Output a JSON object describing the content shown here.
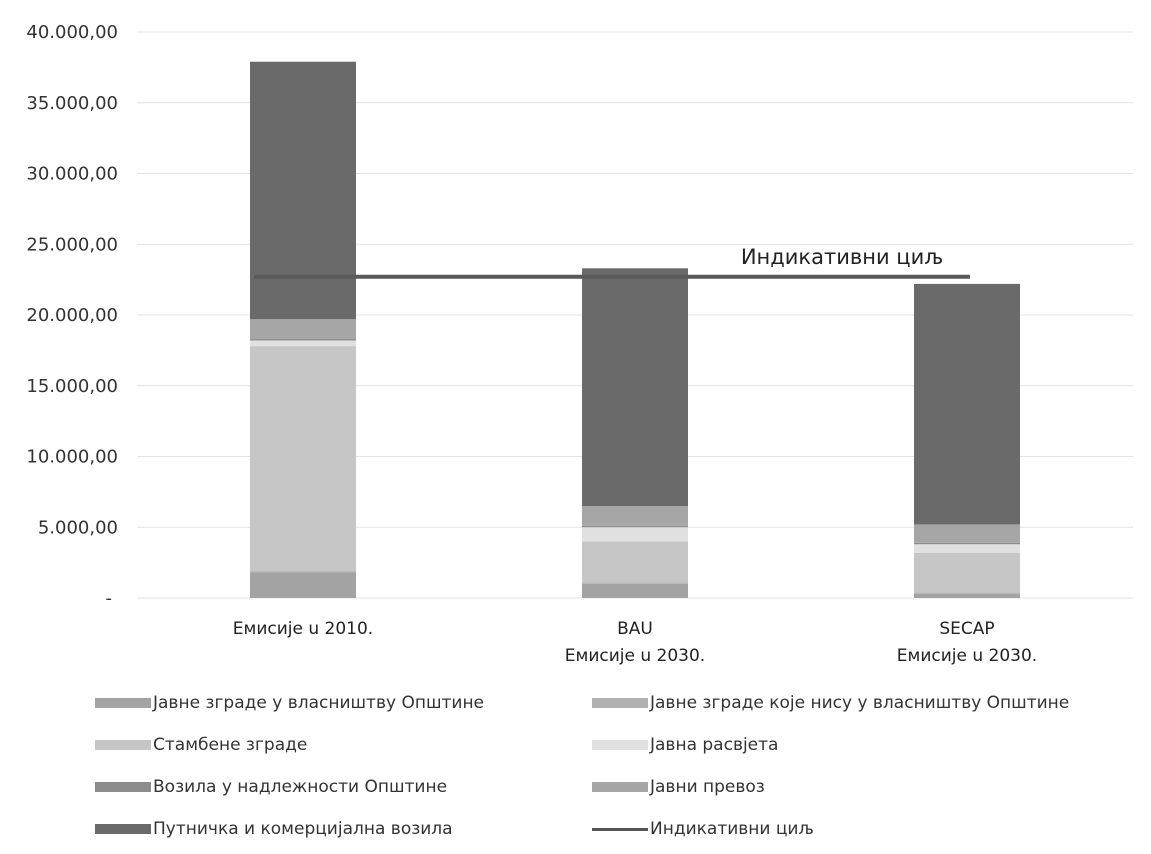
{
  "chart_data": {
    "type": "bar",
    "stacked": true,
    "categories": [
      [
        "Емисије u 2010."
      ],
      [
        "BAU",
        "Емисије u 2030."
      ],
      [
        "SECAP",
        "Емисије u 2030."
      ]
    ],
    "ylim": [
      0,
      40000
    ],
    "yticks": [
      {
        "value": 0,
        "label": "-"
      },
      {
        "value": 5000,
        "label": "5.000,00"
      },
      {
        "value": 10000,
        "label": "10.000,00"
      },
      {
        "value": 15000,
        "label": "15.000,00"
      },
      {
        "value": 20000,
        "label": "20.000,00"
      },
      {
        "value": 25000,
        "label": "25.000,00"
      },
      {
        "value": 30000,
        "label": "30.000,00"
      },
      {
        "value": 35000,
        "label": "35.000,00"
      },
      {
        "value": 40000,
        "label": "40.000,00"
      }
    ],
    "grid": true,
    "legend_position": "bottom",
    "series": [
      {
        "name": "Јавне зграде у власништву Општине",
        "color": "#a3a3a3",
        "values": [
          1800,
          1000,
          300
        ]
      },
      {
        "name": "Јавне зграде које нису у власништву Општине",
        "color": "#b2b2b2",
        "values": [
          100,
          100,
          100
        ]
      },
      {
        "name": "Стамбене зграде",
        "color": "#c6c6c6",
        "values": [
          15900,
          2900,
          2800
        ]
      },
      {
        "name": "Јавна расвјета",
        "color": "#e0e0e0",
        "values": [
          400,
          1000,
          600
        ]
      },
      {
        "name": "Возила у надлежности Општине",
        "color": "#8c8c8c",
        "values": [
          100,
          100,
          100
        ]
      },
      {
        "name": "Јавни превоз",
        "color": "#a6a6a6",
        "values": [
          1400,
          1400,
          1300
        ]
      },
      {
        "name": "Путничка и комерцијална возила",
        "color": "#6a6a6a",
        "values": [
          18200,
          16800,
          17000
        ]
      }
    ],
    "target": {
      "name": "Индикативни циљ",
      "value": 22700,
      "label": "Индикативни циљ",
      "color": "#5a5a5a"
    }
  },
  "legend": [
    {
      "label": "Јавне зграде у власништву Општине",
      "color": "#a3a3a3",
      "kind": "box"
    },
    {
      "label": "Јавне зграде које нису у власништву Општине",
      "color": "#b2b2b2",
      "kind": "box"
    },
    {
      "label": "Стамбене зграде",
      "color": "#c6c6c6",
      "kind": "box"
    },
    {
      "label": "Јавна расвјета",
      "color": "#e0e0e0",
      "kind": "box"
    },
    {
      "label": "Возила у надлежности Општине",
      "color": "#8c8c8c",
      "kind": "box"
    },
    {
      "label": "Јавни превоз",
      "color": "#a6a6a6",
      "kind": "box"
    },
    {
      "label": "Путничка и комерцијална возила",
      "color": "#6a6a6a",
      "kind": "box"
    },
    {
      "label": "Индикативни циљ",
      "color": "#5a5a5a",
      "kind": "line"
    }
  ]
}
